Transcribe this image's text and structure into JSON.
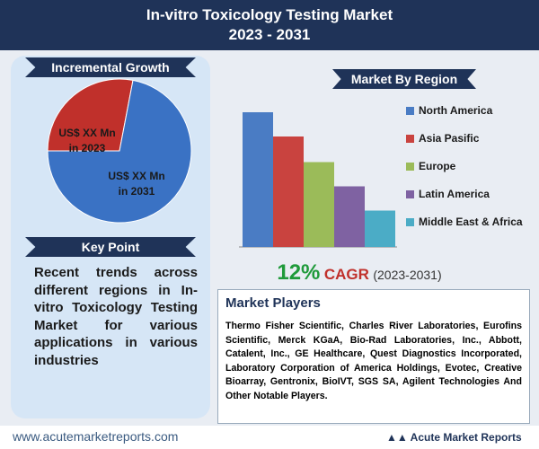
{
  "header": {
    "title": "In-vitro Toxicology Testing Market",
    "subtitle": "2023 - 2031"
  },
  "chart_data": [
    {
      "type": "pie",
      "title": "Incremental Growth",
      "categories": [
        "US$ XX Mn in 2023",
        "US$ XX Mn in 2031"
      ],
      "values": [
        28,
        72
      ],
      "colors": [
        "#c0302b",
        "#3a72c4"
      ]
    },
    {
      "type": "bar",
      "title": "Market By Region",
      "categories": [
        "North America",
        "Asia Pasific",
        "Europe",
        "Latin America",
        "Middle East & Africa"
      ],
      "values": [
        100,
        82,
        63,
        45,
        27
      ],
      "colors": [
        "#4a7cc4",
        "#c9433f",
        "#9bbb59",
        "#7f62a2",
        "#4bacc6"
      ]
    }
  ],
  "key_point": {
    "title": "Key Point",
    "text": "Recent trends across different regions in In-vitro Toxicology Testing Market for various applications in various industries"
  },
  "cagr": {
    "value": "12%",
    "label": "CAGR",
    "period": "(2023-2031)"
  },
  "market_players": {
    "title": "Market Players",
    "text": "Thermo Fisher Scientific, Charles River Laboratories, Eurofins Scientific, Merck KGaA, Bio-Rad Laboratories, Inc., Abbott, Catalent, Inc., GE Healthcare, Quest Diagnostics Incorporated, Laboratory Corporation of America Holdings, Evotec, Creative Bioarray, Gentronix, BioIVT, SGS SA, Agilent Technologies And Other Notable Players."
  },
  "footer": {
    "url": "www.acutemarketreports.com",
    "brand": "Acute Market Reports"
  }
}
